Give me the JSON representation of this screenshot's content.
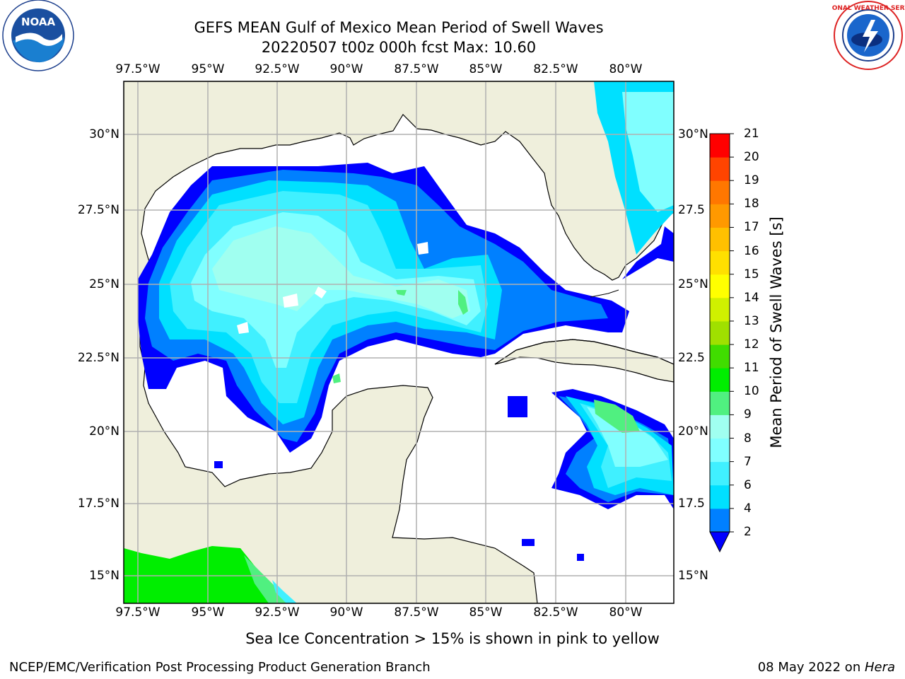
{
  "title": {
    "line1": "GEFS MEAN Gulf of Mexico Mean Period of Swell Waves",
    "line2": "20220507 t00z 000h fcst   Max: 10.60"
  },
  "logos": {
    "noaa": {
      "text": "NOAA",
      "icon": "noaa-logo-icon"
    },
    "nws": {
      "icon": "nws-logo-icon"
    }
  },
  "map": {
    "lon_labels": [
      "97.5°W",
      "95°W",
      "92.5°W",
      "90°W",
      "87.5°W",
      "85°W",
      "82.5°W",
      "80°W"
    ],
    "lat_labels": [
      "30°N",
      "27.5°N",
      "25°N",
      "22.5°N",
      "20°N",
      "17.5°N",
      "15°N"
    ],
    "right_lat_labels": [
      "30°N",
      "27.5",
      "25°N",
      "22.5",
      "20°N",
      "17.5",
      "15°N"
    ],
    "land_color": "#efefdc",
    "grid_color": "#b0b0b0"
  },
  "colorbar": {
    "label": "Mean Period of Swell Waves [s]",
    "ticks": [
      "2",
      "4",
      "6",
      "7",
      "8",
      "9",
      "10",
      "11",
      "12",
      "13",
      "14",
      "15",
      "16",
      "17",
      "18",
      "19",
      "20",
      "21"
    ],
    "colors": [
      "#0080ff",
      "#00e0ff",
      "#40f0ff",
      "#80ffff",
      "#a0fff0",
      "#50f080",
      "#00ee00",
      "#40dd00",
      "#a0e000",
      "#d0f000",
      "#ffff00",
      "#ffe000",
      "#ffc000",
      "#ff9900",
      "#ff7700",
      "#ff4400",
      "#ff0000"
    ],
    "under_color": "#0000ff"
  },
  "caption": "Sea Ice Concentration > 15% is shown in pink to yellow",
  "footer": {
    "left": "NCEP/EMC/Verification Post Processing Product Generation Branch",
    "right_date": "08 May 2022 on ",
    "right_host": "Hera"
  }
}
